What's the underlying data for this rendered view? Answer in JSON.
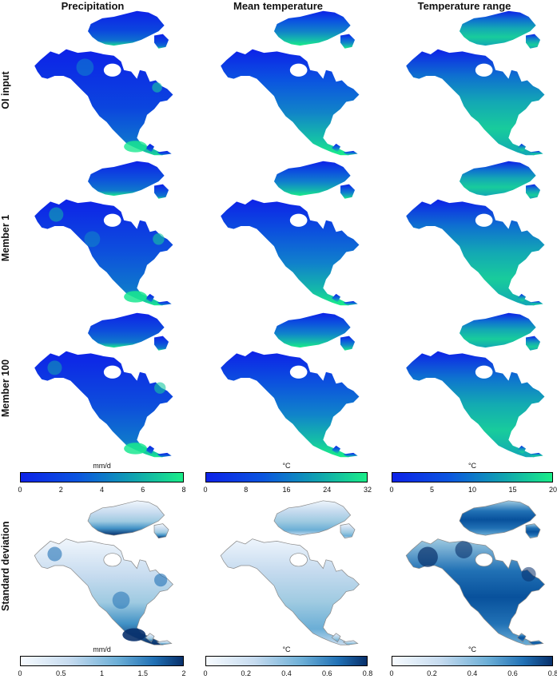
{
  "columns": [
    "Precipitation",
    "Mean temperature",
    "Temperature range"
  ],
  "rows": [
    "OI input",
    "Member 1",
    "Member 100",
    "Standard deviation"
  ],
  "value_colorbars": [
    {
      "unit": "mm/d",
      "ticks": [
        "0",
        "2",
        "4",
        "6",
        "8"
      ]
    },
    {
      "unit": "°C",
      "ticks": [
        "0",
        "8",
        "16",
        "24",
        "32"
      ]
    },
    {
      "unit": "°C",
      "ticks": [
        "0",
        "5",
        "10",
        "15",
        "20"
      ]
    }
  ],
  "sd_colorbars": [
    {
      "unit": "mm/d",
      "ticks": [
        "0",
        "0.5",
        "1",
        "1.5",
        "2"
      ]
    },
    {
      "unit": "°C",
      "ticks": [
        "0",
        "0.2",
        "0.4",
        "0.6",
        "0.8"
      ]
    },
    {
      "unit": "°C",
      "ticks": [
        "0",
        "0.2",
        "0.4",
        "0.6",
        "0.8"
      ]
    }
  ],
  "colors": {
    "value_low": "#0d22e8",
    "value_high": "#1aee88",
    "sd_low": "#f7fbff",
    "sd_high": "#08306b",
    "coast_outline": "#8a8a8a"
  }
}
